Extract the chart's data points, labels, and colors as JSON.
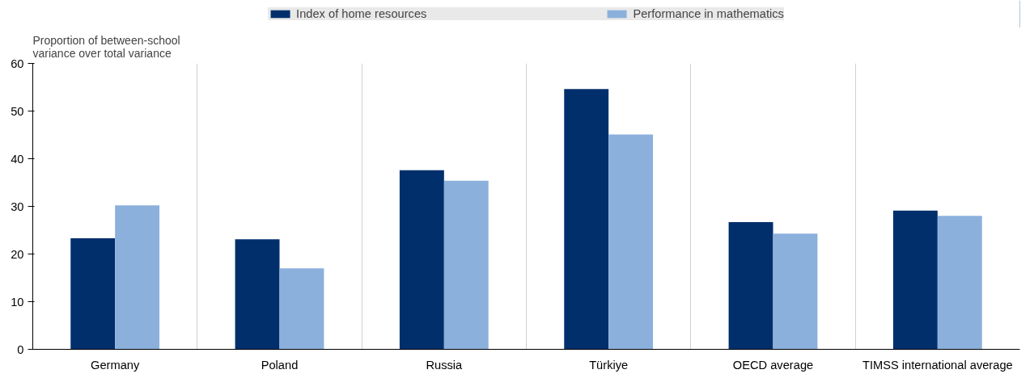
{
  "chart_data": {
    "type": "bar",
    "ylabel": "Proportion of between-school\nvariance over total variance",
    "categories": [
      "Germany",
      "Poland",
      "Russia",
      "Türkiye",
      "OECD average",
      "TIMSS international average"
    ],
    "series": [
      {
        "name": "Index of home resources",
        "color": "#002f6c",
        "values": [
          23.3,
          23.1,
          37.6,
          54.6,
          26.7,
          29.1
        ]
      },
      {
        "name": "Performance in mathematics",
        "color": "#8cb0dc",
        "values": [
          30.2,
          17.0,
          35.4,
          45.1,
          24.3,
          28.0
        ]
      }
    ],
    "ylim": [
      0,
      60
    ],
    "yticks": [
      0,
      10,
      20,
      30,
      40,
      50,
      60
    ],
    "grid": "x",
    "legend": "top"
  }
}
